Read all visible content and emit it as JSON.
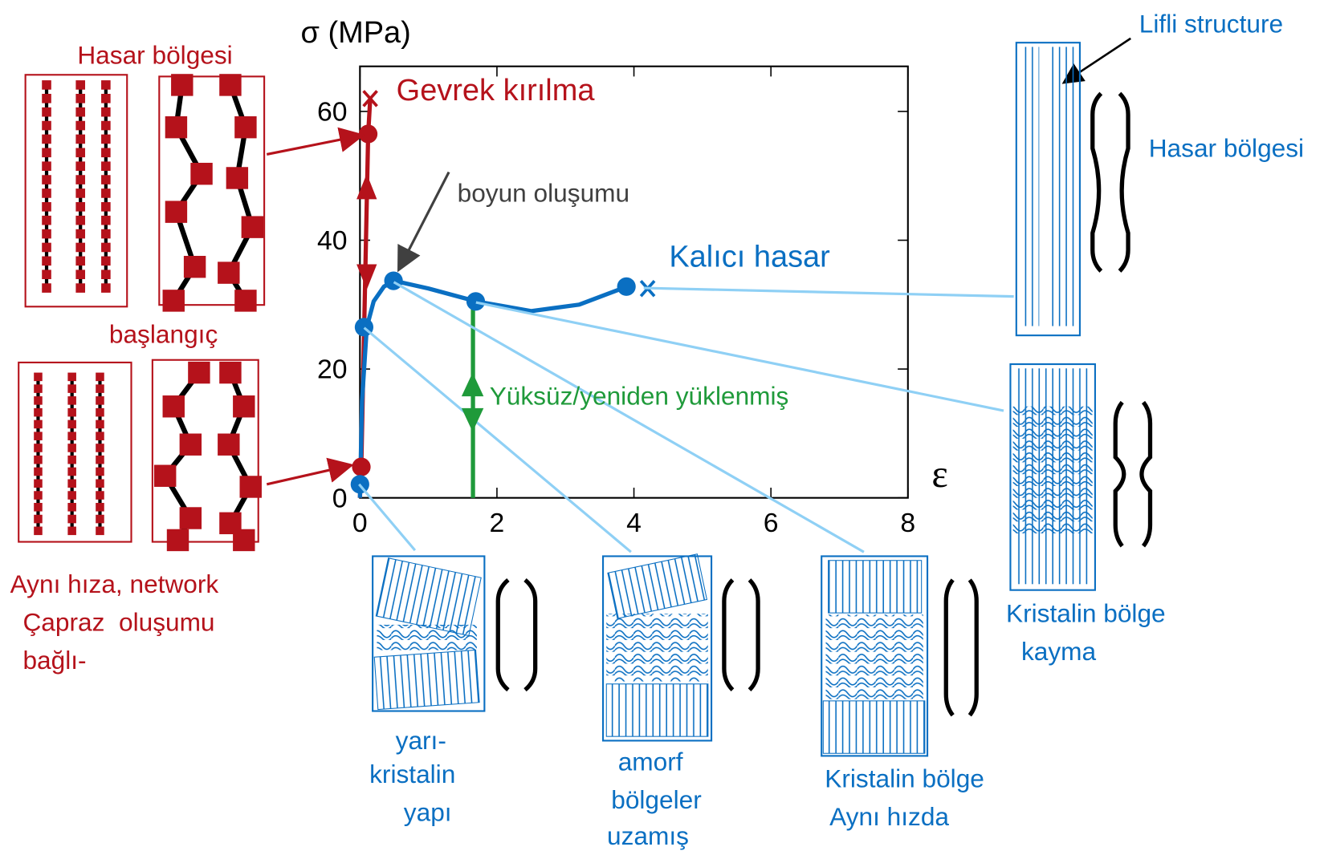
{
  "chart_data": {
    "type": "line",
    "y_label": "σ (MPa)",
    "x_label": "ε",
    "xlim": [
      0,
      8
    ],
    "ylim": [
      0,
      67
    ],
    "xticks": [
      0,
      2,
      4,
      6,
      8
    ],
    "yticks": [
      0,
      20,
      40,
      60
    ],
    "series": [
      {
        "color": "#b5121b",
        "x": [
          0,
          0.02,
          0.12,
          0.15
        ],
        "values": [
          0,
          5,
          56.5,
          62
        ]
      },
      {
        "color": "#0a6fc2",
        "x": [
          0,
          0.03,
          0.1,
          0.2,
          0.35,
          0.5,
          1.0,
          1.7,
          2.5,
          3.2,
          3.9
        ],
        "values": [
          0,
          15,
          26.5,
          30.5,
          32.8,
          33.7,
          32.5,
          30.5,
          29,
          30,
          32.8
        ]
      },
      {
        "color": "#1f9a3a",
        "x": [
          1.65,
          1.65
        ],
        "values": [
          0,
          30.5
        ]
      }
    ],
    "points": [
      {
        "color": "#b5121b",
        "x": [
          0.02,
          0.12
        ],
        "values": [
          4.8,
          56.5
        ]
      },
      {
        "color": "#0a6fc2",
        "x": [
          0,
          0.06,
          0.49,
          1.69,
          3.89
        ],
        "values": [
          2.1,
          26.5,
          33.7,
          30.5,
          32.8
        ]
      }
    ],
    "fracture_marks": [
      {
        "color": "#b5121b",
        "x": [
          0.15
        ],
        "values": [
          62
        ]
      },
      {
        "color": "#0a6fc2",
        "x": [
          4.2
        ],
        "values": [
          32.5
        ]
      }
    ],
    "annotations": [
      "Gevrek kırılma",
      "boyun oluşumu",
      "Kalıcı hasar",
      "Yüksüz/yeniden yüklenmiş"
    ]
  },
  "left_panel": {
    "top_label": "Hasar bölgesi",
    "middle_label": "başlangıç",
    "bottom_lines": [
      "Aynı hıza, network",
      "Çapraz  oluşumu",
      "bağlı-"
    ]
  },
  "bottom_panels": [
    {
      "lines": [
        "yarı-",
        "kristalin",
        "yapı"
      ]
    },
    {
      "lines": [
        "amorf",
        "bölgeler",
        "uzamış"
      ]
    },
    {
      "lines": [
        "Kristalin bölge",
        "Aynı hızda"
      ]
    }
  ],
  "right_panels": [
    {
      "lines": [
        "Lifli structure",
        "Hasar bölgesi"
      ]
    },
    {
      "lines": [
        "Kristalin bölge",
        "kayma"
      ]
    }
  ]
}
